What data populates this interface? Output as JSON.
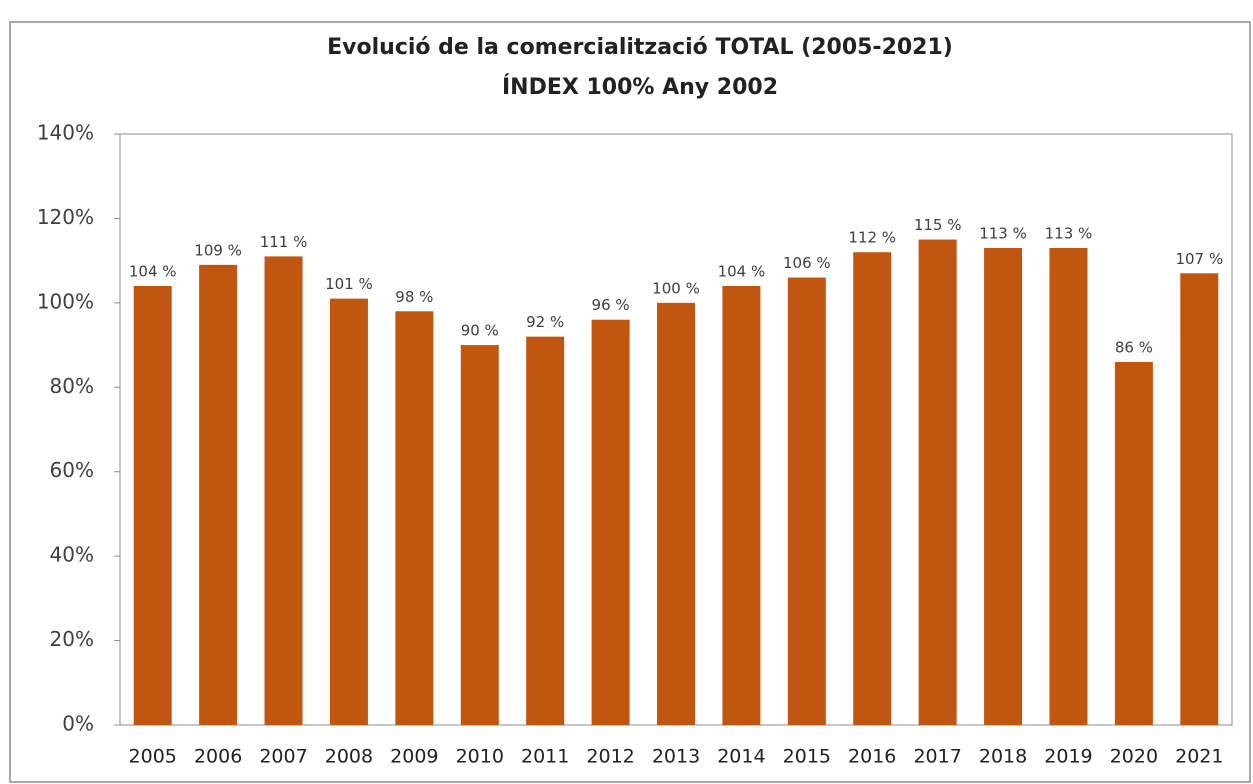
{
  "chart_data": {
    "type": "bar",
    "title": "Evolució de la comercialització TOTAL (2005-2021)",
    "subtitle": "ÍNDEX 100% Any 2002",
    "categories": [
      "2005",
      "2006",
      "2007",
      "2008",
      "2009",
      "2010",
      "2011",
      "2012",
      "2013",
      "2014",
      "2015",
      "2016",
      "2017",
      "2018",
      "2019",
      "2020",
      "2021"
    ],
    "values": [
      104,
      109,
      111,
      101,
      98,
      90,
      92,
      96,
      100,
      104,
      106,
      112,
      115,
      113,
      113,
      86,
      107
    ],
    "value_labels": [
      "104 %",
      "109 %",
      "111 %",
      "101 %",
      "98 %",
      "90 %",
      "92 %",
      "96 %",
      "100 %",
      "104 %",
      "106 %",
      "112 %",
      "115 %",
      "113 %",
      "113 %",
      "86 %",
      "107 %"
    ],
    "color": "#c0560f",
    "ylim": [
      0,
      140
    ],
    "yticks": [
      {
        "value": 0,
        "label": "0%"
      },
      {
        "value": 20,
        "label": "20%"
      },
      {
        "value": 40,
        "label": "40%"
      },
      {
        "value": 60,
        "label": "60%"
      },
      {
        "value": 80,
        "label": "80%"
      },
      {
        "value": 100,
        "label": "100%"
      },
      {
        "value": 120,
        "label": "120%"
      },
      {
        "value": 140,
        "label": "140%"
      }
    ],
    "grid": false
  }
}
